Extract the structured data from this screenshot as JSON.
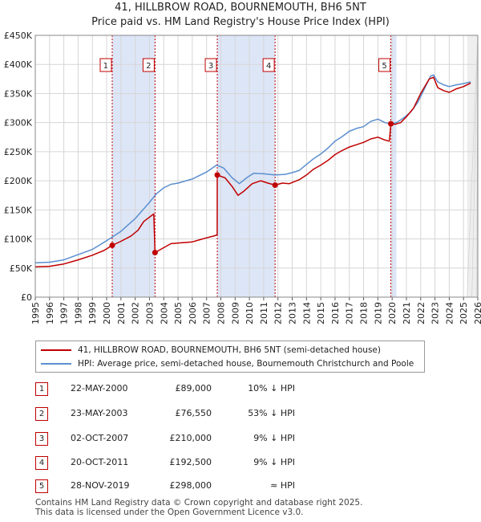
{
  "title_line1": "41, HILLBROW ROAD, BOURNEMOUTH, BH6 5NT",
  "title_line2": "Price paid vs. HM Land Registry's House Price Index (HPI)",
  "colors": {
    "price_line": "#c00000",
    "hpi_line": "#5b8fcf",
    "shade": "#dde6f7",
    "grid": "#d6d6d6"
  },
  "chart_data": {
    "type": "line",
    "ylabel": "",
    "xlabel": "",
    "ylim": [
      0,
      450000
    ],
    "xlim": [
      1995,
      2026
    ],
    "y_ticks": [
      0,
      50000,
      100000,
      150000,
      200000,
      250000,
      300000,
      350000,
      400000,
      450000
    ],
    "y_tick_labels": [
      "£0",
      "£50K",
      "£100K",
      "£150K",
      "£200K",
      "£250K",
      "£300K",
      "£350K",
      "£400K",
      "£450K"
    ],
    "x_ticks": [
      "1995",
      "1996",
      "1997",
      "1998",
      "1999",
      "2000",
      "2001",
      "2002",
      "2003",
      "2004",
      "2005",
      "2006",
      "2007",
      "2008",
      "2009",
      "2010",
      "2011",
      "2012",
      "2013",
      "2014",
      "2015",
      "2016",
      "2017",
      "2018",
      "2019",
      "2020",
      "2021",
      "2022",
      "2023",
      "2024",
      "2025",
      "2026"
    ],
    "shaded_ranges": [
      [
        2000.39,
        2003.39
      ],
      [
        2007.75,
        2011.8
      ],
      [
        2019.91,
        2020.3
      ]
    ],
    "future_from": 2025.25,
    "series": [
      {
        "name": "41, HILLBROW ROAD, BOURNEMOUTH, BH6 5NT (semi-detached house)",
        "points": [
          [
            1995.0,
            52000
          ],
          [
            1996.0,
            53000
          ],
          [
            1997.0,
            57000
          ],
          [
            1998.0,
            64000
          ],
          [
            1999.0,
            72000
          ],
          [
            1999.8,
            80000
          ],
          [
            2000.39,
            89000
          ],
          [
            2001.0,
            96000
          ],
          [
            2001.7,
            105000
          ],
          [
            2002.2,
            115000
          ],
          [
            2002.6,
            130000
          ],
          [
            2003.3,
            143000
          ],
          [
            2003.39,
            76550
          ],
          [
            2004.0,
            85000
          ],
          [
            2004.5,
            92000
          ],
          [
            2005.0,
            93000
          ],
          [
            2006.0,
            95000
          ],
          [
            2006.7,
            100000
          ],
          [
            2007.5,
            105000
          ],
          [
            2007.74,
            107000
          ],
          [
            2007.75,
            210000
          ],
          [
            2008.3,
            205000
          ],
          [
            2008.8,
            190000
          ],
          [
            2009.2,
            175000
          ],
          [
            2009.6,
            182000
          ],
          [
            2010.2,
            195000
          ],
          [
            2010.8,
            200000
          ],
          [
            2011.3,
            196000
          ],
          [
            2011.8,
            192500
          ],
          [
            2012.3,
            196000
          ],
          [
            2012.8,
            195000
          ],
          [
            2013.5,
            202000
          ],
          [
            2014.0,
            210000
          ],
          [
            2014.5,
            220000
          ],
          [
            2015.0,
            227000
          ],
          [
            2015.5,
            235000
          ],
          [
            2016.0,
            245000
          ],
          [
            2016.5,
            252000
          ],
          [
            2017.0,
            258000
          ],
          [
            2017.5,
            262000
          ],
          [
            2018.0,
            266000
          ],
          [
            2018.5,
            272000
          ],
          [
            2019.0,
            275000
          ],
          [
            2019.5,
            270000
          ],
          [
            2019.8,
            268000
          ],
          [
            2019.91,
            298000
          ],
          [
            2020.2,
            297000
          ],
          [
            2020.6,
            300000
          ],
          [
            2021.0,
            310000
          ],
          [
            2021.5,
            325000
          ],
          [
            2022.0,
            350000
          ],
          [
            2022.6,
            375000
          ],
          [
            2022.9,
            378000
          ],
          [
            2023.2,
            360000
          ],
          [
            2023.6,
            355000
          ],
          [
            2024.0,
            352000
          ],
          [
            2024.5,
            358000
          ],
          [
            2025.0,
            362000
          ],
          [
            2025.5,
            368000
          ]
        ]
      },
      {
        "name": "HPI: Average price, semi-detached house, Bournemouth Christchurch and Poole",
        "points": [
          [
            1995.0,
            59000
          ],
          [
            1996.0,
            60000
          ],
          [
            1997.0,
            64000
          ],
          [
            1998.0,
            73000
          ],
          [
            1999.0,
            82000
          ],
          [
            2000.0,
            97000
          ],
          [
            2001.0,
            113000
          ],
          [
            2002.0,
            135000
          ],
          [
            2003.0,
            163000
          ],
          [
            2003.5,
            178000
          ],
          [
            2004.0,
            188000
          ],
          [
            2004.5,
            194000
          ],
          [
            2005.0,
            196000
          ],
          [
            2006.0,
            203000
          ],
          [
            2007.0,
            215000
          ],
          [
            2007.7,
            227000
          ],
          [
            2008.2,
            222000
          ],
          [
            2008.8,
            205000
          ],
          [
            2009.3,
            195000
          ],
          [
            2009.8,
            205000
          ],
          [
            2010.3,
            213000
          ],
          [
            2011.0,
            212000
          ],
          [
            2011.8,
            210000
          ],
          [
            2012.5,
            211000
          ],
          [
            2013.0,
            214000
          ],
          [
            2013.5,
            218000
          ],
          [
            2014.0,
            228000
          ],
          [
            2014.5,
            238000
          ],
          [
            2015.0,
            246000
          ],
          [
            2015.5,
            256000
          ],
          [
            2016.0,
            268000
          ],
          [
            2016.5,
            276000
          ],
          [
            2017.0,
            285000
          ],
          [
            2017.5,
            290000
          ],
          [
            2018.0,
            293000
          ],
          [
            2018.5,
            302000
          ],
          [
            2019.0,
            306000
          ],
          [
            2019.5,
            300000
          ],
          [
            2019.91,
            298000
          ],
          [
            2020.3,
            300000
          ],
          [
            2020.8,
            308000
          ],
          [
            2021.3,
            318000
          ],
          [
            2021.8,
            335000
          ],
          [
            2022.3,
            360000
          ],
          [
            2022.7,
            380000
          ],
          [
            2022.9,
            382000
          ],
          [
            2023.2,
            370000
          ],
          [
            2023.6,
            365000
          ],
          [
            2024.0,
            362000
          ],
          [
            2024.5,
            365000
          ],
          [
            2025.0,
            367000
          ],
          [
            2025.5,
            370000
          ]
        ]
      }
    ],
    "sales": [
      {
        "num": "1",
        "year": 2000.39,
        "price": 89000
      },
      {
        "num": "2",
        "year": 2003.39,
        "price": 76550
      },
      {
        "num": "3",
        "year": 2007.75,
        "price": 210000
      },
      {
        "num": "4",
        "year": 2011.8,
        "price": 192500
      },
      {
        "num": "5",
        "year": 2019.91,
        "price": 298000
      }
    ]
  },
  "legend": {
    "price": "41, HILLBROW ROAD, BOURNEMOUTH, BH6 5NT (semi-detached house)",
    "hpi": "HPI: Average price, semi-detached house, Bournemouth Christchurch and Poole"
  },
  "sales_table": [
    {
      "num": "1",
      "date": "22-MAY-2000",
      "price": "£89,000",
      "hpi": "10% ↓ HPI"
    },
    {
      "num": "2",
      "date": "23-MAY-2003",
      "price": "£76,550",
      "hpi": "53% ↓ HPI"
    },
    {
      "num": "3",
      "date": "02-OCT-2007",
      "price": "£210,000",
      "hpi": "9% ↓ HPI"
    },
    {
      "num": "4",
      "date": "20-OCT-2011",
      "price": "£192,500",
      "hpi": "9% ↓ HPI"
    },
    {
      "num": "5",
      "date": "28-NOV-2019",
      "price": "£298,000",
      "hpi": "≈ HPI"
    }
  ],
  "footer": {
    "line1": "Contains HM Land Registry data © Crown copyright and database right 2025.",
    "line2": "This data is licensed under the Open Government Licence v3.0."
  }
}
